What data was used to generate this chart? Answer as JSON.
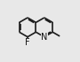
{
  "bg_color": "#e8e8e8",
  "bond_color": "#1a1a1a",
  "bond_width": 1.2,
  "font_size": 7,
  "atom_color": "#111111",
  "dbo": 0.018,
  "L": 0.155,
  "lcx": 0.3,
  "lcy": 0.56,
  "fig_width": 0.9,
  "fig_height": 0.7,
  "dpi": 100
}
